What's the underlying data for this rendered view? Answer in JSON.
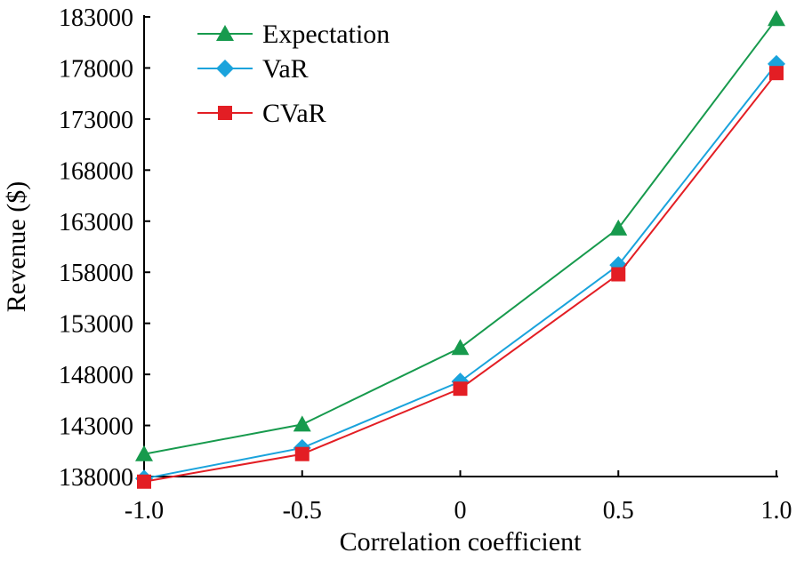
{
  "chart_data": {
    "type": "line",
    "title": "",
    "xlabel": "Correlation coefficient",
    "ylabel": "Revenue ($)",
    "x": [
      -1.0,
      -0.5,
      0,
      0.5,
      1.0
    ],
    "x_tick_labels": [
      "-1.0",
      "-0.5",
      "0",
      "0.5",
      "1.0"
    ],
    "y_tick_labels": [
      "138000",
      "143000",
      "148000",
      "153000",
      "158000",
      "163000",
      "168000",
      "173000",
      "178000",
      "183000"
    ],
    "xlim": [
      -1.0,
      1.0
    ],
    "ylim": [
      138000,
      183000
    ],
    "grid": false,
    "legend_position": "top-left",
    "series": [
      {
        "name": "Expectation",
        "marker": "triangle",
        "color": "#179a4d",
        "values": [
          140200,
          143100,
          150600,
          162300,
          182800
        ]
      },
      {
        "name": "VaR",
        "marker": "diamond",
        "color": "#1aa3dc",
        "values": [
          137800,
          140800,
          147300,
          158700,
          178400
        ]
      },
      {
        "name": "CVaR",
        "marker": "square",
        "color": "#e31e24",
        "values": [
          137500,
          140200,
          146600,
          157800,
          177500
        ]
      }
    ]
  }
}
